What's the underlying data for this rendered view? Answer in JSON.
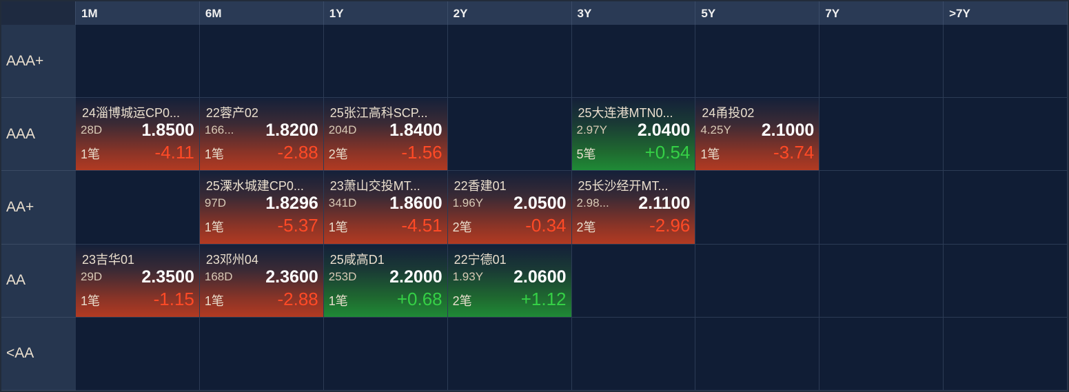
{
  "columns": [
    "1M",
    "6M",
    "1Y",
    "2Y",
    "3Y",
    "5Y",
    "7Y",
    ">7Y"
  ],
  "rows": [
    {
      "label": "AAA+",
      "cells": [
        null,
        null,
        null,
        null,
        null,
        null,
        null,
        null
      ]
    },
    {
      "label": "AAA",
      "cells": [
        {
          "name": "24淄博城运CP0...",
          "term": "28D",
          "price": "1.8500",
          "count": "1笔",
          "change": "-4.11"
        },
        {
          "name": "22蓉产02",
          "term": "166...",
          "price": "1.8200",
          "count": "1笔",
          "change": "-2.88"
        },
        {
          "name": "25张江高科SCP...",
          "term": "204D",
          "price": "1.8400",
          "count": "2笔",
          "change": "-1.56"
        },
        null,
        {
          "name": "25大连港MTN0...",
          "term": "2.97Y",
          "price": "2.0400",
          "count": "5笔",
          "change": "+0.54"
        },
        {
          "name": "24甬投02",
          "term": "4.25Y",
          "price": "2.1000",
          "count": "1笔",
          "change": "-3.74"
        },
        null,
        null
      ]
    },
    {
      "label": "AA+",
      "cells": [
        null,
        {
          "name": "25溧水城建CP0...",
          "term": "97D",
          "price": "1.8296",
          "count": "1笔",
          "change": "-5.37"
        },
        {
          "name": "23萧山交投MT...",
          "term": "341D",
          "price": "1.8600",
          "count": "1笔",
          "change": "-4.51"
        },
        {
          "name": "22香建01",
          "term": "1.96Y",
          "price": "2.0500",
          "count": "2笔",
          "change": "-0.34"
        },
        {
          "name": "25长沙经开MT...",
          "term": "2.98...",
          "price": "2.1100",
          "count": "2笔",
          "change": "-2.96"
        },
        null,
        null,
        null
      ]
    },
    {
      "label": "AA",
      "cells": [
        {
          "name": "23吉华01",
          "term": "29D",
          "price": "2.3500",
          "count": "1笔",
          "change": "-1.15"
        },
        {
          "name": "23邓州04",
          "term": "168D",
          "price": "2.3600",
          "count": "1笔",
          "change": "-2.88"
        },
        {
          "name": "25咸高D1",
          "term": "253D",
          "price": "2.2000",
          "count": "1笔",
          "change": "+0.68"
        },
        {
          "name": "22宁德01",
          "term": "1.93Y",
          "price": "2.0600",
          "count": "2笔",
          "change": "+1.12"
        },
        null,
        null,
        null,
        null
      ]
    },
    {
      "label": "<AA",
      "cells": [
        null,
        null,
        null,
        null,
        null,
        null,
        null,
        null
      ]
    }
  ]
}
